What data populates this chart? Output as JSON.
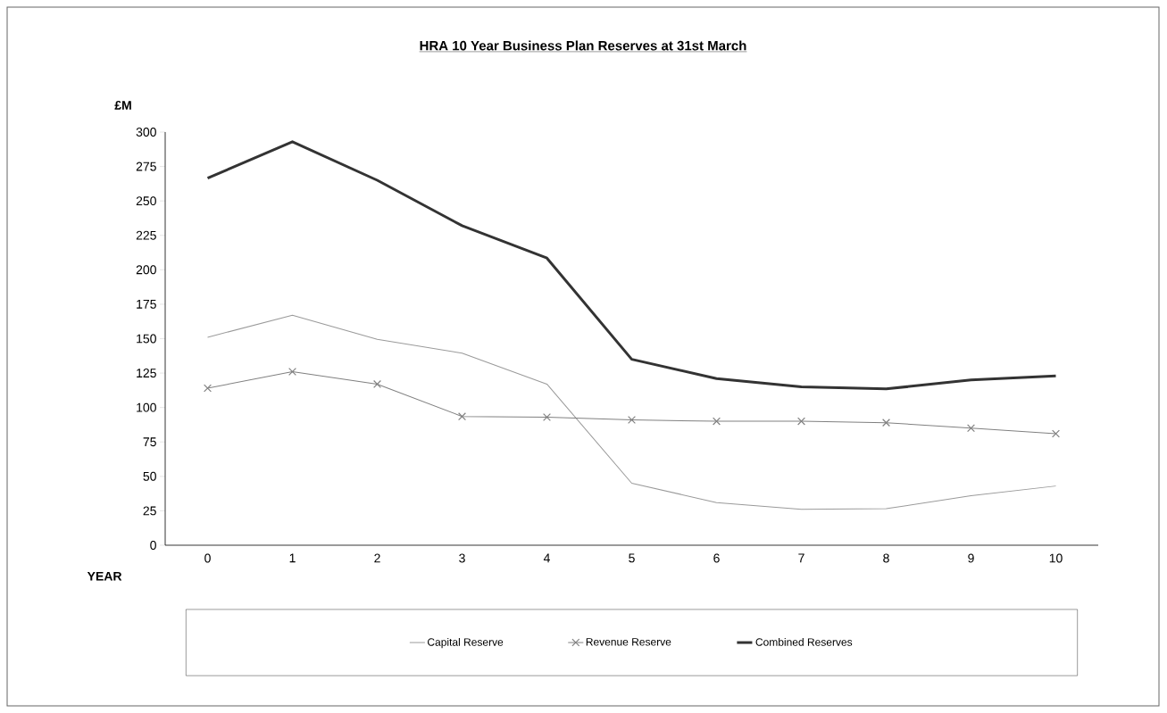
{
  "chart_data": {
    "type": "line",
    "title": "HRA 10 Year Business Plan Reserves at 31st March",
    "xlabel": "YEAR",
    "ylabel": "£M",
    "categories": [
      "0",
      "1",
      "2",
      "3",
      "4",
      "5",
      "6",
      "7",
      "8",
      "9",
      "10"
    ],
    "series": [
      {
        "name": "Capital Reserve",
        "color": "#9a9a9a",
        "marker": "none",
        "values": [
          151,
          167,
          149.5,
          139.5,
          117,
          45,
          31,
          26,
          26.5,
          36,
          43
        ]
      },
      {
        "name": "Revenue Reserve",
        "color": "#808080",
        "marker": "cross",
        "values": [
          114,
          126,
          117,
          93.5,
          93,
          91,
          90,
          90,
          89,
          85,
          81
        ]
      },
      {
        "name": "Combined Reserves",
        "color": "#333333",
        "marker": "none",
        "values": [
          266.5,
          293,
          265,
          232,
          208.5,
          135,
          121,
          115,
          113.5,
          120,
          123
        ]
      }
    ],
    "ylim": [
      0,
      300
    ],
    "yticks": [
      0,
      25,
      50,
      75,
      100,
      125,
      150,
      175,
      200,
      225,
      250,
      275,
      300
    ],
    "grid": false,
    "legend": "bottom",
    "line_style": "solid"
  }
}
